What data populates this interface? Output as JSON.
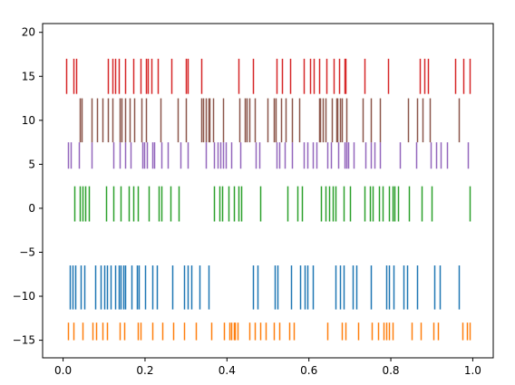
{
  "chart_data": {
    "type": "scatter",
    "plot_style": "eventplot",
    "title": "",
    "xlabel": "",
    "ylabel": "",
    "xlim": [
      -0.05,
      1.05
    ],
    "ylim": [
      -17,
      21
    ],
    "grid": false,
    "x_ticks": [
      0.0,
      0.2,
      0.4,
      0.6,
      0.8,
      1.0
    ],
    "x_tick_labels": [
      "0.0",
      "0.2",
      "0.4",
      "0.6",
      "0.8",
      "1.0"
    ],
    "y_ticks": [
      -15,
      -10,
      -5,
      0,
      5,
      10,
      15,
      20
    ],
    "y_tick_labels": [
      "−15",
      "−10",
      "−5",
      "0",
      "5",
      "10",
      "15",
      "20"
    ],
    "series": [
      {
        "color": "#ff7f0e",
        "y_range": [
          -15,
          -13
        ],
        "x": [
          0.012,
          0.025,
          0.048,
          0.071,
          0.081,
          0.095,
          0.108,
          0.138,
          0.15,
          0.182,
          0.188,
          0.218,
          0.242,
          0.268,
          0.295,
          0.325,
          0.362,
          0.392,
          0.405,
          0.411,
          0.416,
          0.42,
          0.425,
          0.455,
          0.469,
          0.482,
          0.495,
          0.514,
          0.528,
          0.551,
          0.563,
          0.645,
          0.68,
          0.69,
          0.72,
          0.753,
          0.77,
          0.782,
          0.789,
          0.796,
          0.804,
          0.85,
          0.872,
          0.905,
          0.916,
          0.974,
          0.985,
          0.993
        ]
      },
      {
        "color": "#1f77b4",
        "y_range": [
          -11.5,
          -6.5
        ],
        "x": [
          0.016,
          0.024,
          0.03,
          0.042,
          0.052,
          0.078,
          0.092,
          0.101,
          0.108,
          0.116,
          0.128,
          0.135,
          0.141,
          0.148,
          0.152,
          0.168,
          0.181,
          0.185,
          0.2,
          0.218,
          0.228,
          0.266,
          0.295,
          0.304,
          0.312,
          0.334,
          0.355,
          0.464,
          0.474,
          0.516,
          0.524,
          0.557,
          0.578,
          0.59,
          0.597,
          0.61,
          0.664,
          0.676,
          0.685,
          0.706,
          0.716,
          0.752,
          0.788,
          0.796,
          0.806,
          0.83,
          0.84,
          0.865,
          0.907,
          0.92,
          0.966
        ]
      },
      {
        "color": "#2ca02c",
        "y_range": [
          -1.5,
          2.5
        ],
        "x": [
          0.028,
          0.04,
          0.047,
          0.055,
          0.063,
          0.104,
          0.123,
          0.14,
          0.16,
          0.172,
          0.183,
          0.208,
          0.233,
          0.24,
          0.262,
          0.282,
          0.368,
          0.382,
          0.389,
          0.403,
          0.418,
          0.428,
          0.434,
          0.481,
          0.548,
          0.572,
          0.583,
          0.63,
          0.64,
          0.65,
          0.658,
          0.664,
          0.684,
          0.701,
          0.735,
          0.749,
          0.755,
          0.771,
          0.781,
          0.795,
          0.804,
          0.808,
          0.817,
          0.845,
          0.876,
          0.9,
          0.993
        ]
      },
      {
        "color": "#9467bd",
        "y_range": [
          4.5,
          7.5
        ],
        "x": [
          0.012,
          0.018,
          0.038,
          0.07,
          0.123,
          0.138,
          0.152,
          0.165,
          0.193,
          0.197,
          0.204,
          0.217,
          0.222,
          0.239,
          0.256,
          0.287,
          0.305,
          0.348,
          0.368,
          0.378,
          0.383,
          0.39,
          0.398,
          0.41,
          0.432,
          0.471,
          0.479,
          0.522,
          0.528,
          0.54,
          0.558,
          0.588,
          0.596,
          0.61,
          0.619,
          0.646,
          0.654,
          0.672,
          0.686,
          0.691,
          0.696,
          0.71,
          0.738,
          0.751,
          0.76,
          0.774,
          0.823,
          0.862,
          0.897,
          0.911,
          0.922,
          0.937,
          0.989
        ]
      },
      {
        "color": "#8c564b",
        "y_range": [
          7.5,
          12.5
        ],
        "x": [
          0.04,
          0.045,
          0.07,
          0.082,
          0.097,
          0.11,
          0.12,
          0.138,
          0.142,
          0.152,
          0.162,
          0.173,
          0.191,
          0.203,
          0.238,
          0.28,
          0.3,
          0.337,
          0.342,
          0.349,
          0.355,
          0.358,
          0.367,
          0.391,
          0.431,
          0.444,
          0.448,
          0.454,
          0.469,
          0.499,
          0.514,
          0.518,
          0.532,
          0.544,
          0.558,
          0.577,
          0.624,
          0.628,
          0.633,
          0.64,
          0.655,
          0.667,
          0.67,
          0.676,
          0.68,
          0.691,
          0.731,
          0.752,
          0.773,
          0.842,
          0.864,
          0.877,
          0.894,
          0.965
        ]
      },
      {
        "color": "#d62728",
        "y_range": [
          13,
          17
        ],
        "x": [
          0.008,
          0.025,
          0.032,
          0.11,
          0.12,
          0.128,
          0.136,
          0.152,
          0.172,
          0.19,
          0.203,
          0.207,
          0.215,
          0.23,
          0.264,
          0.299,
          0.305,
          0.338,
          0.427,
          0.464,
          0.52,
          0.535,
          0.555,
          0.588,
          0.602,
          0.612,
          0.625,
          0.642,
          0.66,
          0.674,
          0.686,
          0.69,
          0.735,
          0.793,
          0.87,
          0.882,
          0.891,
          0.957,
          0.978,
          0.992
        ]
      }
    ]
  }
}
